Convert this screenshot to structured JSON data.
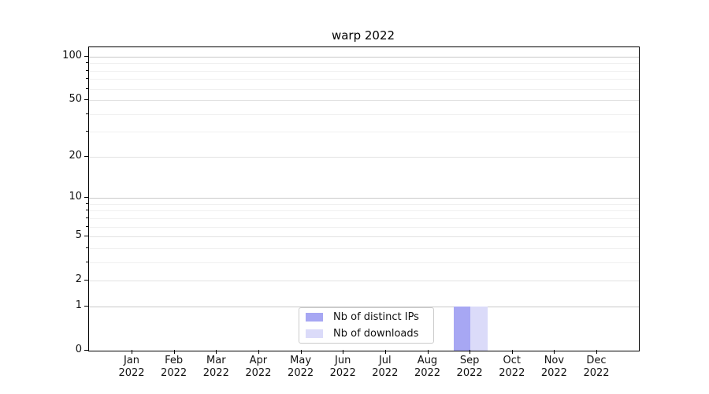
{
  "chart_data": {
    "type": "bar",
    "title": "warp 2022",
    "categories": [
      "Jan",
      "Feb",
      "Mar",
      "Apr",
      "May",
      "Jun",
      "Jul",
      "Aug",
      "Sep",
      "Oct",
      "Nov",
      "Dec"
    ],
    "category_year": "2022",
    "series": [
      {
        "name": "Nb of distinct IPs",
        "color": "#a7a7f3",
        "values": [
          0,
          0,
          0,
          0,
          0,
          0,
          0,
          0,
          1,
          0,
          0,
          0
        ]
      },
      {
        "name": "Nb of downloads",
        "color": "#dbdbf9",
        "values": [
          0,
          0,
          0,
          0,
          0,
          0,
          0,
          0,
          1,
          0,
          0,
          0
        ]
      }
    ],
    "yscale": "log1p",
    "ylim": [
      0,
      116
    ],
    "yticks": [
      0,
      1,
      2,
      5,
      10,
      20,
      50,
      100
    ],
    "decade_yticks": [
      1,
      10,
      100
    ],
    "minor_yticks": [
      3,
      4,
      6,
      7,
      8,
      9,
      30,
      40,
      60,
      70,
      80,
      90
    ],
    "grid": "horizontal",
    "legend_position": "lower center",
    "colors": {
      "grid_decade": "#c9c9c9",
      "grid_labeled_minor": "#e2e2e2",
      "grid_minor": "#f0f0f0",
      "spine": "#000000",
      "legend_border": "#cccccc",
      "background": "#ffffff"
    }
  }
}
